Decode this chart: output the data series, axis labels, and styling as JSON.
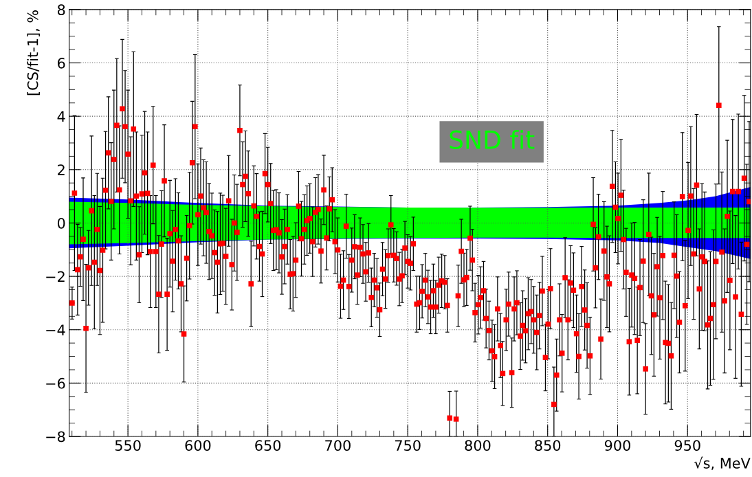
{
  "chart_data": {
    "type": "scatter",
    "xlabel": "√s, MeV",
    "ylabel": "[CS/fit-1], %",
    "xlim": [
      508,
      995
    ],
    "xticks": [
      550,
      600,
      650,
      700,
      750,
      800,
      850,
      900,
      950
    ],
    "ylim": [
      -8,
      8
    ],
    "yticks": [
      -8,
      -6,
      -4,
      -2,
      0,
      2,
      4,
      6,
      8
    ],
    "grid": true,
    "marker": "square",
    "series": [
      {
        "type": "line",
        "color": "#0000ff",
        "x": [
          508,
          550,
          600,
          650,
          700,
          750,
          800,
          850,
          900,
          930,
          950,
          970,
          995
        ],
        "values": [
          null,
          null,
          null,
          null,
          null,
          null,
          null,
          null,
          null,
          null,
          null,
          null,
          null
        ],
        "lower": [
          -0.95,
          -0.85,
          -0.72,
          -0.62,
          -0.6,
          -0.58,
          -0.58,
          -0.6,
          -0.65,
          -0.75,
          -0.9,
          -1.05,
          -1.35
        ],
        "upper": [
          0.95,
          0.88,
          0.75,
          0.65,
          0.62,
          0.58,
          0.58,
          0.6,
          0.65,
          0.75,
          0.85,
          1.0,
          1.35
        ]
      },
      {
        "type": "line",
        "name": "SND fit",
        "color": "#00ff00",
        "x": [
          508,
          550,
          600,
          650,
          700,
          750,
          800,
          850,
          900,
          930,
          950,
          970,
          995
        ],
        "values": [
          null,
          null,
          null,
          null,
          null,
          null,
          null,
          null,
          null,
          null,
          null,
          null,
          null
        ],
        "lower": [
          -0.8,
          -0.75,
          -0.68,
          -0.62,
          -0.58,
          -0.56,
          -0.55,
          -0.55,
          -0.56,
          -0.56,
          -0.56,
          -0.56,
          -0.56
        ],
        "upper": [
          0.8,
          0.75,
          0.68,
          0.63,
          0.6,
          0.58,
          0.57,
          0.57,
          0.58,
          0.58,
          0.58,
          0.58,
          0.58
        ]
      },
      {
        "color": "#ff0000",
        "x": [
          510.1,
          511.8,
          514,
          516,
          518,
          520,
          521.8,
          524,
          526,
          528,
          530,
          532,
          534,
          536,
          538,
          540,
          542,
          543.9,
          546,
          548,
          550,
          552,
          554,
          556,
          558,
          560,
          562,
          564,
          566,
          568,
          570,
          572,
          574,
          576,
          578,
          580,
          582,
          584,
          586,
          588,
          590,
          592,
          594,
          596,
          598,
          600,
          602,
          604,
          606,
          608,
          610,
          612,
          614,
          616,
          617.8,
          620,
          622,
          624.3,
          626,
          628,
          630,
          632,
          634,
          636,
          638,
          640,
          642,
          644,
          646,
          648,
          650,
          652,
          654,
          656,
          658,
          660,
          662,
          664,
          666,
          668,
          670,
          672,
          674,
          676,
          678,
          680,
          682,
          684,
          686,
          688,
          690,
          692,
          694,
          696,
          698,
          700,
          702,
          704,
          706,
          708,
          710,
          712,
          714,
          716,
          718,
          720,
          722,
          724,
          726,
          728,
          730,
          732,
          734,
          736,
          738,
          740,
          742,
          744,
          746,
          748,
          750,
          752,
          754,
          756.4,
          758.5,
          760.3,
          762.5,
          764.5,
          766.4,
          768.3,
          770,
          772.2,
          774.3,
          776.4,
          778.3,
          780,
          784.6,
          786,
          788.3,
          790.2,
          792.1,
          794.6,
          796.2,
          798.1,
          800.4,
          802.1,
          804.2,
          806,
          808.1,
          810.3,
          812.1,
          814.2,
          816.3,
          817.9,
          820.3,
          822.1,
          824.4,
          826.1,
          828,
          830.5,
          832.2,
          834.2,
          836.1,
          838.2,
          840.1,
          842.2,
          844.1,
          846.2,
          848.4,
          850.3,
          852,
          854.5,
          856.4,
          858.5,
          860.3,
          862.5,
          864.5,
          866.4,
          868.5,
          870.6,
          872.3,
          874.3,
          876.5,
          878.2,
          880.3,
          882.6,
          884.2,
          886.3,
          888,
          890.3,
          892.4,
          894.1,
          896.2,
          898.5,
          900.3,
          902.4,
          904.3,
          906.1,
          908.3,
          910.1,
          912.2,
          914.1,
          916,
          918.3,
          920,
          922.3,
          924.1,
          926,
          928.3,
          930.2,
          932.3,
          934.2,
          936.3,
          938.3,
          940.4,
          942.3,
          944.2,
          946.3,
          948.3,
          950.4,
          952.3,
          954.4,
          956.5,
          958.4,
          960.3,
          962.3,
          964.4,
          966.3,
          968.4,
          970.3,
          972.4,
          974.5,
          976.5,
          978.4,
          980.3,
          982.2,
          984.3,
          986.3,
          988.4,
          990.5,
          992.4,
          994.1
        ],
        "values": [
          -3.0,
          1.12,
          -1.75,
          -1.27,
          -0.61,
          -3.95,
          -1.68,
          0.46,
          -1.47,
          -0.24,
          -1.78,
          -1.02,
          1.23,
          2.63,
          0.81,
          2.38,
          3.66,
          1.24,
          4.28,
          3.61,
          2.58,
          0.83,
          3.52,
          1.01,
          -1.19,
          1.09,
          1.88,
          1.11,
          -1.07,
          2.17,
          -1.07,
          -2.67,
          -0.79,
          1.58,
          -2.67,
          -0.4,
          -1.43,
          -0.24,
          -0.67,
          -2.28,
          -4.16,
          -1.32,
          -0.1,
          2.26,
          3.61,
          0.31,
          1.01,
          0.57,
          0.39,
          -0.32,
          -0.48,
          -1.11,
          -1.47,
          -0.78,
          -0.76,
          -1.25,
          0.83,
          -1.56,
          0.0,
          -0.35,
          3.47,
          1.44,
          1.75,
          1.1,
          -2.28,
          0.64,
          0.25,
          -0.88,
          -1.16,
          1.85,
          1.44,
          0.73,
          -0.28,
          -0.25,
          -0.37,
          -1.27,
          -0.88,
          -0.24,
          -1.92,
          -1.9,
          -1.39,
          0.63,
          -0.59,
          -0.24,
          0.09,
          0.17,
          -0.7,
          0.4,
          0.51,
          -1.05,
          1.24,
          -0.56,
          0.53,
          0.87,
          -0.7,
          -1.01,
          -2.37,
          -2.14,
          -0.12,
          -2.38,
          -1.39,
          -0.89,
          -1.95,
          -0.91,
          -1.16,
          -1.83,
          -1.12,
          -2.79,
          -2.14,
          -2.43,
          -3.25,
          -1.73,
          -2.1,
          -1.22,
          -0.07,
          -1.21,
          -1.33,
          -2.1,
          -1.98,
          -0.94,
          -1.44,
          -1.51,
          -0.78,
          -3.04,
          -2.99,
          -2.56,
          -2.14,
          -2.77,
          -3.15,
          -2.54,
          -3.15,
          -2.33,
          -2.17,
          -2.22,
          -3.09,
          -7.31,
          -7.35,
          -2.73,
          -1.06,
          -2.13,
          -2.04,
          -0.57,
          -1.39,
          -3.36,
          -3.06,
          -2.79,
          -2.54,
          -3.58,
          -4.03,
          -4.79,
          -5.01,
          -3.22,
          -4.59,
          -5.64,
          -3.63,
          -3.04,
          -5.61,
          -3.22,
          -2.99,
          -4.24,
          -3.84,
          -4.04,
          -3.4,
          -3.32,
          -3.63,
          -4.1,
          -3.47,
          -2.55,
          -5.04,
          -3.79,
          -2.46,
          -6.8,
          -5.7,
          -3.63,
          -4.88,
          -2.05,
          -3.63,
          -2.25,
          -2.52,
          -4.15,
          -5.0,
          -2.38,
          -3.26,
          -3.84,
          -4.98,
          -0.05,
          -1.68,
          -0.52,
          -4.35,
          -1.05,
          -2.02,
          -2.28,
          1.37,
          0.59,
          0.17,
          1.04,
          -0.62,
          -1.85,
          -4.45,
          -1.95,
          -2.08,
          -4.4,
          -2.42,
          -1.43,
          -5.47,
          -0.43,
          -2.73,
          -3.44,
          -1.64,
          -2.8,
          -1.22,
          -4.48,
          -4.51,
          -4.98,
          -1.21,
          -1.99,
          -3.72,
          0.99,
          -3.1,
          -0.28,
          1.01,
          -1.16,
          1.42,
          -2.47,
          -1.27,
          -1.44,
          -3.82,
          -3.58,
          -3.06,
          -1.44,
          4.41,
          -1.09,
          -2.92,
          0.25,
          -2.15,
          1.18,
          -2.77,
          1.18,
          -3.42,
          1.68,
          -0.8,
          0.8
        ],
        "errors": [
          0.6,
          2.9,
          1.7,
          1.1,
          2.3,
          2.4,
          1.4,
          2.8,
          2.5,
          2.1,
          2.4,
          2.7,
          2.2,
          2.1,
          2.2,
          2.6,
          2.5,
          2.4,
          2.6,
          2.1,
          2.4,
          2.4,
          2.9,
          2.4,
          1.8,
          2.2,
          2.3,
          2.3,
          2.1,
          2.2,
          2.1,
          2.2,
          2.0,
          2.1,
          2.1,
          2.0,
          1.9,
          1.9,
          1.8,
          1.8,
          1.8,
          1.6,
          2.0,
          2.3,
          2.7,
          1.9,
          1.8,
          1.8,
          1.9,
          1.8,
          1.6,
          1.6,
          1.9,
          1.9,
          1.8,
          1.8,
          1.7,
          1.7,
          1.8,
          1.8,
          1.7,
          1.6,
          1.7,
          1.6,
          1.6,
          1.5,
          1.6,
          1.3,
          1.6,
          1.5,
          1.4,
          1.5,
          1.5,
          1.5,
          1.5,
          1.4,
          1.4,
          1.3,
          1.3,
          1.4,
          1.4,
          1.3,
          1.4,
          1.3,
          1.3,
          1.3,
          1.3,
          1.3,
          1.3,
          1.2,
          1.3,
          1.2,
          1.2,
          1.2,
          1.2,
          1.2,
          1.2,
          1.1,
          1.2,
          1.2,
          1.2,
          1.2,
          1.1,
          1.1,
          1.1,
          1.1,
          1.1,
          1.1,
          1.0,
          1.1,
          1.0,
          1.0,
          1.1,
          1.0,
          1.1,
          1.0,
          1.0,
          1.0,
          1.0,
          1.0,
          1.0,
          1.0,
          1.0,
          1.05,
          1.0,
          1.0,
          1.0,
          1.0,
          1.0,
          1.0,
          1.0,
          1.05,
          1.0,
          1.0,
          1.0,
          [
            -8,
            -6.31
          ],
          [
            -8,
            -6.3
          ],
          1.15,
          1.2,
          1.0,
          1.05,
          1.2,
          1.15,
          1.1,
          1.1,
          1.15,
          1.1,
          1.1,
          1.1,
          1.15,
          1.2,
          1.2,
          1.2,
          1.2,
          1.15,
          1.2,
          1.3,
          1.2,
          1.2,
          1.25,
          1.3,
          1.2,
          1.35,
          1.2,
          1.25,
          1.4,
          1.25,
          1.3,
          1.25,
          1.3,
          1.5,
          [
            -8,
            -5.4
          ],
          1.35,
          1.35,
          1.45,
          1.5,
          1.5,
          1.4,
          1.4,
          1.45,
          1.6,
          1.5,
          1.5,
          1.6,
          1.45,
          1.75,
          1.5,
          1.6,
          1.5,
          1.85,
          1.9,
          1.8,
          2.1,
          1.7,
          1.7,
          2.1,
          1.85,
          1.65,
          2.0,
          1.95,
          2.1,
          2.0,
          1.8,
          2.3,
          1.7,
          2.3,
          2.2,
          2.3,
          1.85,
          2.3,
          2.4,
          2.3,
          2.2,
          2.0,
          2.0,
          2.3,
          1.9,
          2.4,
          2.45,
          2.55,
          2.6,
          2.45,
          2.65,
          2.25,
          2.75,
          2.6,
          2.4,
          2.5,
          2.8,
          2.9,
          2.95,
          3.0,
          2.7,
          2.85,
          2.6,
          2.7,
          3.05,
          2.9,
          2.7,
          3.1,
          3.0,
          3.0
        ]
      }
    ]
  }
}
